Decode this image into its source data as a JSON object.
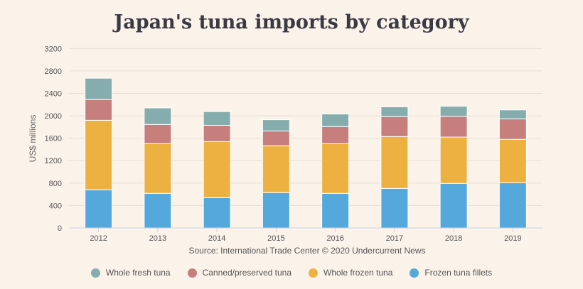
{
  "chart_data": {
    "type": "bar",
    "stacked": true,
    "title": "Japan's tuna imports by category",
    "xlabel": "",
    "ylabel": "US$ millions",
    "source": "Source: International Trade Center © 2020 Undercurrent News",
    "categories": [
      "2012",
      "2013",
      "2014",
      "2015",
      "2016",
      "2017",
      "2018",
      "2019"
    ],
    "ylim": [
      0,
      3200
    ],
    "yticks": [
      0,
      400,
      800,
      1200,
      1600,
      2000,
      2400,
      2800,
      3200
    ],
    "grid": true,
    "legend_position": "bottom",
    "series": [
      {
        "name": "Frozen tuna fillets",
        "color": "#55a8dc",
        "values": [
          680,
          617,
          540,
          630,
          617,
          705,
          795,
          805
        ]
      },
      {
        "name": "Whole frozen tuna",
        "color": "#ecb141",
        "values": [
          1240,
          886,
          1000,
          835,
          885,
          925,
          825,
          775
        ]
      },
      {
        "name": "Canned/preserved tuna",
        "color": "#c77f7e",
        "values": [
          370,
          342,
          290,
          265,
          305,
          355,
          370,
          365
        ]
      },
      {
        "name": "Whole fresh tuna",
        "color": "#86adad",
        "values": [
          380,
          295,
          245,
          200,
          225,
          175,
          180,
          160
        ]
      }
    ],
    "legend_order": [
      "Whole fresh tuna",
      "Canned/preserved tuna",
      "Whole frozen tuna",
      "Frozen tuna fillets"
    ]
  }
}
